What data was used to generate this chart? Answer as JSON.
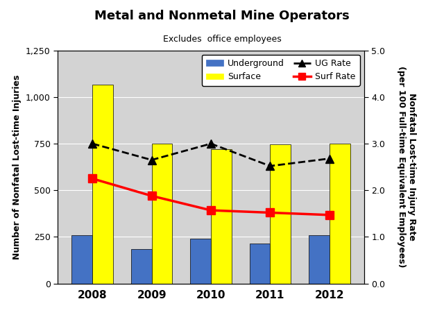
{
  "title": "Metal and Nonmetal Mine Operators",
  "subtitle": "Excludes  office employees",
  "years": [
    2008,
    2009,
    2010,
    2011,
    2012
  ],
  "underground_values": [
    258,
    185,
    240,
    215,
    258
  ],
  "surface_values": [
    1065,
    750,
    720,
    745,
    750
  ],
  "ug_rate": [
    3.0,
    2.65,
    3.0,
    2.52,
    2.68
  ],
  "surf_rate": [
    2.25,
    1.88,
    1.57,
    1.52,
    1.47
  ],
  "left_ylim": [
    0,
    1250
  ],
  "right_ylim": [
    0,
    5.0
  ],
  "left_yticks": [
    0,
    250,
    500,
    750,
    1000,
    1250
  ],
  "right_yticks": [
    0.0,
    1.0,
    2.0,
    3.0,
    4.0,
    5.0
  ],
  "ylabel_left": "Number of Nonfatal Lost-time Injuries",
  "ylabel_right": "Nonfatal Lost-time Injury Rate\n(per 100 Full-time Equivalent Employees)",
  "underground_color": "#4472C4",
  "surface_color": "#FFFF00",
  "ug_rate_color": "#000000",
  "surf_rate_color": "#FF0000",
  "bar_width": 0.35,
  "background_color": "#D3D3D3",
  "legend_underground": "Underground",
  "legend_surface": "Surface",
  "legend_ug_rate": "UG Rate",
  "legend_surf_rate": "Surf Rate"
}
